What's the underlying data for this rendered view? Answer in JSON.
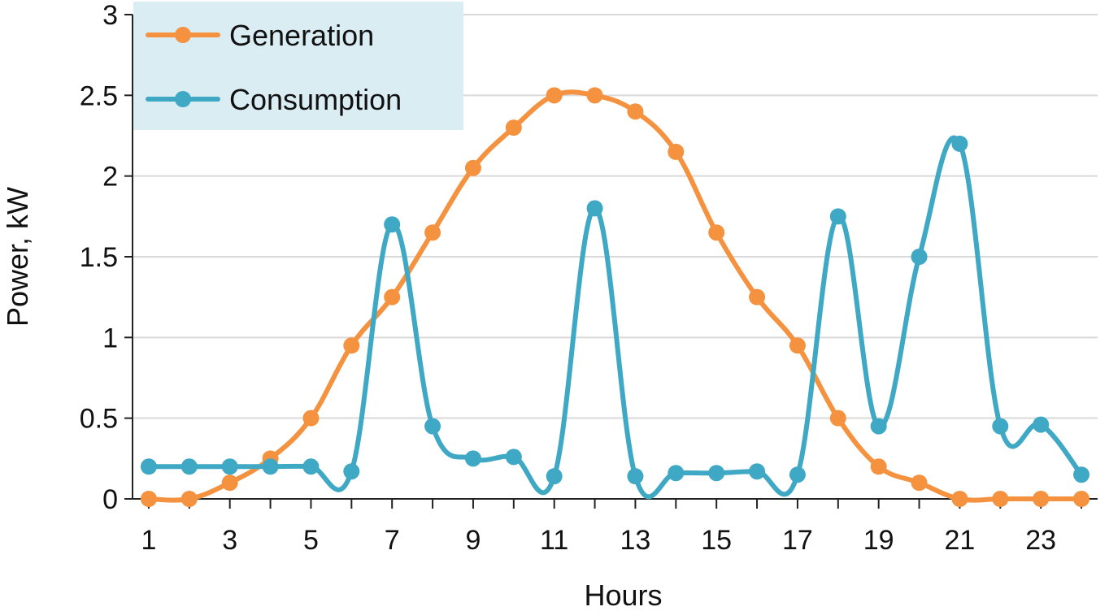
{
  "chart_data": {
    "type": "line",
    "title": "",
    "xlabel": "Hours",
    "ylabel": "Power, kW",
    "x": [
      1,
      2,
      3,
      4,
      5,
      6,
      7,
      8,
      9,
      10,
      11,
      12,
      13,
      14,
      15,
      16,
      17,
      18,
      19,
      20,
      21,
      22,
      23,
      24
    ],
    "xlim": [
      1,
      24
    ],
    "ylim": [
      0,
      3
    ],
    "x_tick_labels": [
      "1",
      "3",
      "5",
      "7",
      "9",
      "11",
      "13",
      "15",
      "17",
      "19",
      "21",
      "23"
    ],
    "x_tick_values": [
      1,
      3,
      5,
      7,
      9,
      11,
      13,
      15,
      17,
      19,
      21,
      23
    ],
    "y_tick_labels": [
      "0",
      "0.5",
      "1",
      "1.5",
      "2",
      "2.5",
      "3"
    ],
    "y_tick_values": [
      0,
      0.5,
      1,
      1.5,
      2,
      2.5,
      3
    ],
    "grid": true,
    "legend_position": "top-left",
    "series": [
      {
        "name": "Generation",
        "color": "#f4923f",
        "values": [
          0,
          0,
          0.1,
          0.25,
          0.5,
          0.95,
          1.25,
          1.65,
          2.05,
          2.3,
          2.5,
          2.5,
          2.4,
          2.15,
          1.65,
          1.25,
          0.95,
          0.5,
          0.2,
          0.1,
          0,
          0,
          0,
          0
        ]
      },
      {
        "name": "Consumption",
        "color": "#3fa8c4",
        "values": [
          0.2,
          0.2,
          0.2,
          0.2,
          0.2,
          0.17,
          1.7,
          0.45,
          0.25,
          0.26,
          0.14,
          1.8,
          0.14,
          0.16,
          0.16,
          0.17,
          0.15,
          1.75,
          0.45,
          1.5,
          2.2,
          0.45,
          0.46,
          0.15
        ]
      }
    ]
  },
  "legend": {
    "background": "#daedf3",
    "items": [
      "Generation",
      "Consumption"
    ]
  }
}
